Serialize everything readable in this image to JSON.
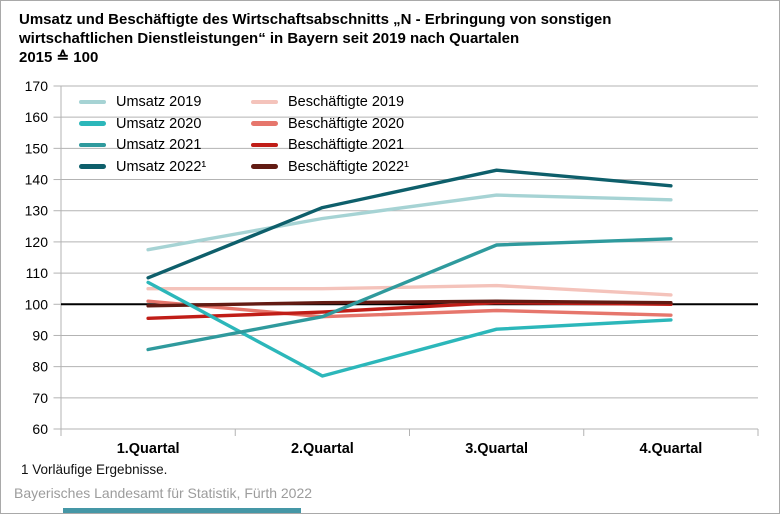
{
  "title": {
    "line1": "Umsatz und Beschäftigte des Wirtschaftsabschnitts „N - Erbringung von sonstigen",
    "line2": "wirtschaftlichen Dienstleistungen“ in Bayern seit 2019 nach Quartalen",
    "line3": "2015 ≙ 100"
  },
  "footnote": "1 Vorläufige Ergebnisse.",
  "source": "Bayerisches Landesamt für Statistik, Fürth 2022",
  "colors": {
    "grid": "#b3b3b3",
    "axis": "#b3b3b3",
    "baseline": "#000000",
    "text": "#000000",
    "source_text": "#9c9c9c",
    "bottom_bar": "#4597a6"
  },
  "chart_data": {
    "type": "line",
    "categories": [
      "1.Quartal",
      "2.Quartal",
      "3.Quartal",
      "4.Quartal"
    ],
    "yticks": [
      60,
      70,
      80,
      90,
      100,
      110,
      120,
      130,
      140,
      150,
      160,
      170
    ],
    "ylim": [
      60,
      170
    ],
    "baseline": 100,
    "grid": true,
    "legend_position": "top-left inside plot, two columns",
    "series": [
      {
        "name": "Umsatz 2019",
        "color": "#a6d3d4",
        "values": [
          117.5,
          127.5,
          135.0,
          133.5
        ]
      },
      {
        "name": "Umsatz 2020",
        "color": "#2cb7ba",
        "values": [
          107.0,
          77.0,
          92.0,
          95.0
        ]
      },
      {
        "name": "Umsatz 2021",
        "color": "#2f9a9d",
        "values": [
          85.5,
          96.0,
          119.0,
          121.0
        ]
      },
      {
        "name": "Umsatz 2022¹",
        "color": "#0e5f6b",
        "values": [
          108.5,
          131.0,
          143.0,
          138.0
        ]
      },
      {
        "name": "Beschäftigte 2019",
        "color": "#f4c3bb",
        "values": [
          105.0,
          105.0,
          106.0,
          103.0
        ]
      },
      {
        "name": "Beschäftigte 2020",
        "color": "#e6766c",
        "values": [
          101.0,
          96.0,
          98.0,
          96.5
        ]
      },
      {
        "name": "Beschäftigte 2021",
        "color": "#c01d17",
        "values": [
          95.5,
          97.5,
          100.5,
          100.0
        ]
      },
      {
        "name": "Beschäftigte 2022¹",
        "color": "#621b13",
        "values": [
          99.5,
          100.5,
          101.0,
          100.5
        ]
      }
    ]
  }
}
